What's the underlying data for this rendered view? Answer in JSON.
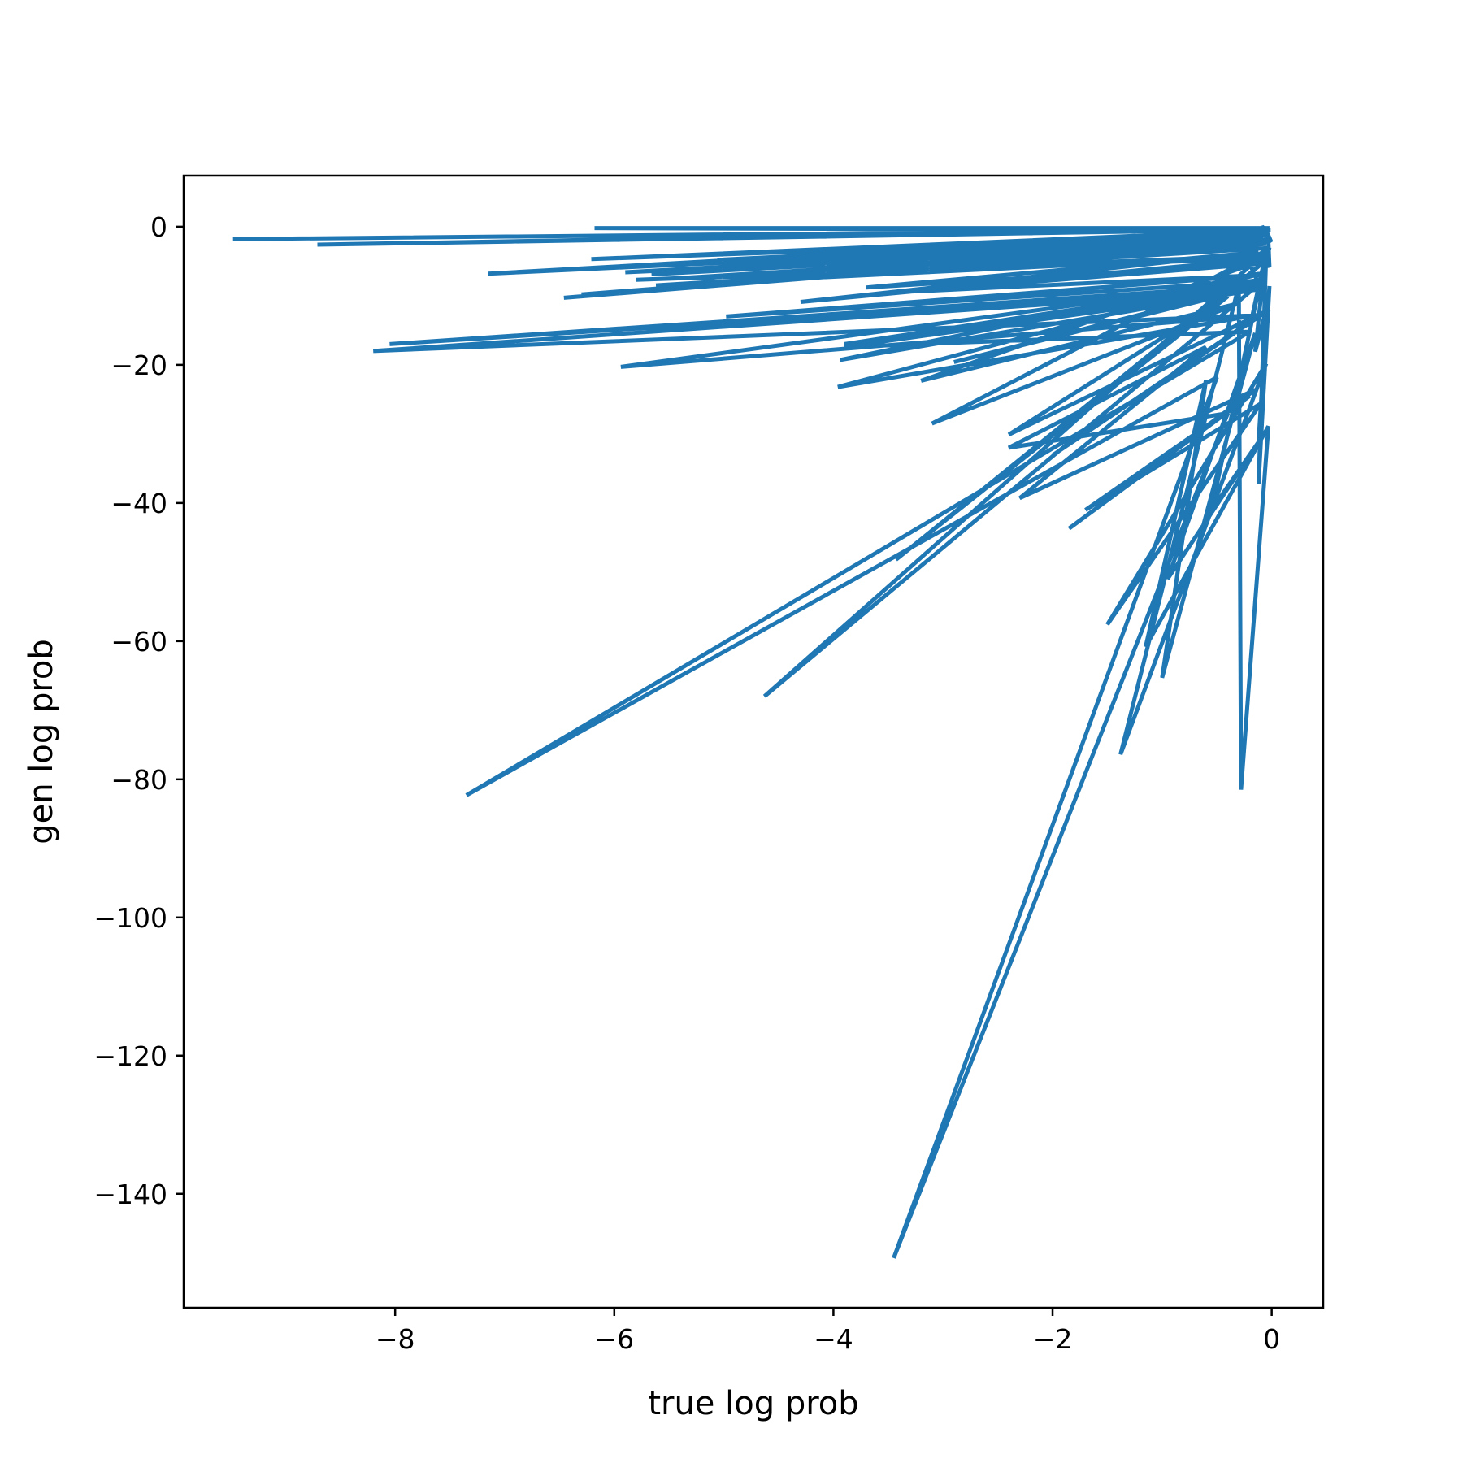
{
  "chart_data": {
    "type": "line",
    "title": "",
    "xlabel": "true log prob",
    "ylabel": "gen log prob",
    "xlim": [
      -9.93,
      0.47
    ],
    "ylim": [
      -156.5,
      7.4
    ],
    "xticks": [
      -8,
      -6,
      -4,
      -2,
      0
    ],
    "yticks": [
      0,
      -20,
      -40,
      -60,
      -80,
      -100,
      -120,
      -140
    ],
    "xtick_labels": [
      "−8",
      "−6",
      "−4",
      "−2",
      "0"
    ],
    "ytick_labels": [
      "0",
      "−20",
      "−40",
      "−60",
      "−80",
      "−100",
      "−120",
      "−140"
    ],
    "grid": false,
    "legend": "none",
    "color": "#1f77b4",
    "series": [
      {
        "x": [
          -9.48,
          -0.05,
          -8.71,
          -0.02,
          -6.18,
          -0.01,
          -6.21,
          -0.03,
          -5.06,
          -0.04,
          -5.04,
          -0.02,
          -4.1,
          -0.06,
          -7.15,
          -0.1,
          -5.21,
          -0.03,
          -6.46,
          -0.04,
          -6.3,
          -0.05,
          -5.9,
          -0.08,
          -5.66,
          -0.04,
          -5.46,
          -0.03,
          -5.62,
          -0.04,
          -5.8,
          -0.06,
          -4.3,
          -0.12,
          -3.7,
          -0.05,
          -3.3,
          -0.1,
          -4.98,
          -0.05,
          -3.9,
          -0.2,
          -2.9,
          -0.05,
          -8.05,
          -0.1,
          -8.2,
          -0.1,
          -5.94,
          -0.06,
          -4.63,
          -0.02,
          -3.1,
          -0.3,
          -3.2,
          -0.03,
          -3.43,
          -0.4,
          -2.4,
          -0.02,
          -2.0,
          -0.1,
          -3.96,
          -0.05,
          -3.94,
          -0.1,
          -3.9,
          -0.2,
          -7.35,
          -0.5,
          -3.45,
          -0.4,
          -2.4,
          -0.6,
          -2.3,
          -0.15,
          -1.85,
          -0.2,
          -1.7,
          -0.1,
          -1.5,
          -0.05,
          -1.38,
          -0.3,
          -0.28,
          -0.03,
          -1.15,
          -0.6,
          -1.0,
          -0.15,
          -0.95,
          -0.1,
          -0.55,
          -0.05,
          -0.12,
          -0.02,
          -0.12,
          -0.04,
          -0.15,
          -0.06,
          -0.2,
          -0.02,
          -0.1,
          -0.3,
          -0.08,
          -0.05,
          -0.02,
          -0.03,
          -0.01,
          -0.02,
          -0.05,
          -0.08,
          -0.1,
          -0.1
        ],
        "y": [
          -1.8,
          -0.4,
          -2.6,
          -0.2,
          -0.2,
          -0.5,
          -4.7,
          -1.2,
          -4.8,
          -0.9,
          -6.2,
          -1.8,
          -6.6,
          -0.5,
          -6.8,
          -1.6,
          -7.5,
          -1.8,
          -10.3,
          -2.2,
          -9.8,
          -2.5,
          -6.6,
          -1.4,
          -6.9,
          -2.2,
          -7.5,
          -3.1,
          -8.5,
          -4.2,
          -7.7,
          -4.6,
          -10.9,
          -3.7,
          -8.8,
          -5.3,
          -9.4,
          -7.0,
          -13.0,
          -7.8,
          -17.0,
          -8.7,
          -19.6,
          -8.4,
          -17.0,
          -9.1,
          -18.0,
          -12.8,
          -20.3,
          -7.6,
          -68.0,
          -3.2,
          -28.5,
          -11.1,
          -22.3,
          -4.6,
          -48.2,
          -10.1,
          -30.1,
          -12.0,
          -33.1,
          -12.7,
          -23.2,
          -6.6,
          -19.3,
          -9.0,
          -17.4,
          -15.2,
          -82.3,
          -21.8,
          -149.3,
          -27.0,
          -32.0,
          -17.4,
          -39.3,
          -23.6,
          -43.7,
          -24.5,
          -41.0,
          -25.6,
          -57.6,
          -19.8,
          -76.4,
          -8.5,
          -81.5,
          -28.9,
          -60.8,
          -22.2,
          -65.3,
          -15.4,
          -51.0,
          -30.7,
          -41.0,
          -4.0,
          -37.2,
          -8.6,
          -31.0,
          -11.4,
          -18.1,
          -4.3,
          -14.6,
          -3.0,
          -8.9,
          -2.0,
          -9.5,
          -4.6,
          -5.9,
          -2.2,
          -2.0,
          -1.6,
          -0.6,
          -0.1,
          -0.2,
          0.0
        ]
      }
    ]
  }
}
